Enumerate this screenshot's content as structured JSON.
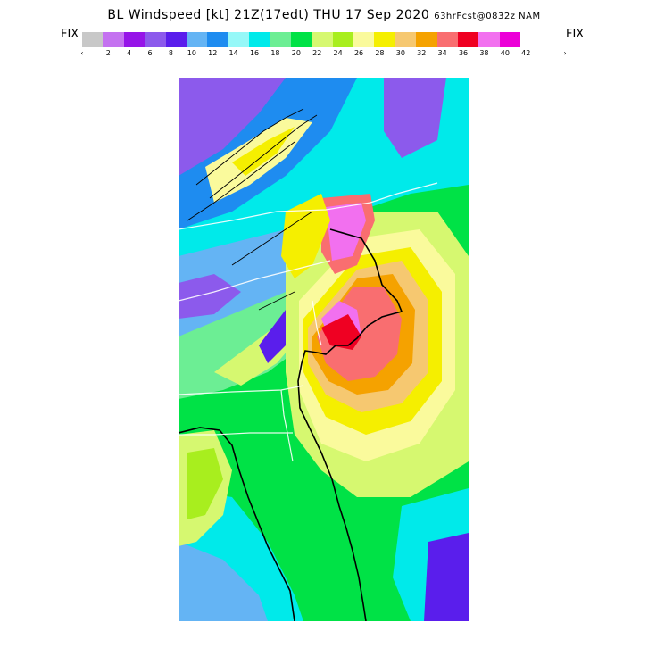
{
  "title": {
    "main": "BL Windspeed [kt] 21Z(17edt) THU 17 Sep 2020",
    "forecast": "63hrFcst@0832z NAM"
  },
  "nav": {
    "left_label": "FIX",
    "right_label": "FIX"
  },
  "colorbar": {
    "left_arrow": "‹",
    "right_arrow": "›",
    "tick_labels": [
      "2",
      "4",
      "6",
      "8",
      "10",
      "12",
      "14",
      "16",
      "18",
      "20",
      "22",
      "24",
      "26",
      "28",
      "30",
      "32",
      "34",
      "36",
      "38",
      "40",
      "42"
    ],
    "colors": [
      "#c8c8c8",
      "#c472f0",
      "#9614e8",
      "#8c5aec",
      "#5a1eec",
      "#64b4f4",
      "#1e8cf0",
      "#96f8f8",
      "#00eaea",
      "#6cee94",
      "#00e246",
      "#d6f870",
      "#a8ee1e",
      "#fafa9c",
      "#f5ef00",
      "#f6c870",
      "#f5a200",
      "#f96e70",
      "#ef0022",
      "#f270ef",
      "#ec00d8"
    ]
  },
  "map": {
    "description_icon": "wind-speed-raster",
    "palette": {
      "water_dark": "#5a1eec",
      "violet": "#8c5aec",
      "light_blue": "#64b4f4",
      "blue": "#1e8cf0",
      "cyan_light": "#96f8f8",
      "cyan": "#00eaea",
      "green_light": "#6cee94",
      "green": "#00e246",
      "lime_light": "#d6f870",
      "lime": "#a8ee1e",
      "yellow_light": "#fafa9c",
      "yellow": "#f5ef00",
      "orange_light": "#f6c870",
      "orange": "#f5a200",
      "salmon": "#f96e70",
      "red": "#ef0022",
      "pink": "#f270ef"
    }
  }
}
